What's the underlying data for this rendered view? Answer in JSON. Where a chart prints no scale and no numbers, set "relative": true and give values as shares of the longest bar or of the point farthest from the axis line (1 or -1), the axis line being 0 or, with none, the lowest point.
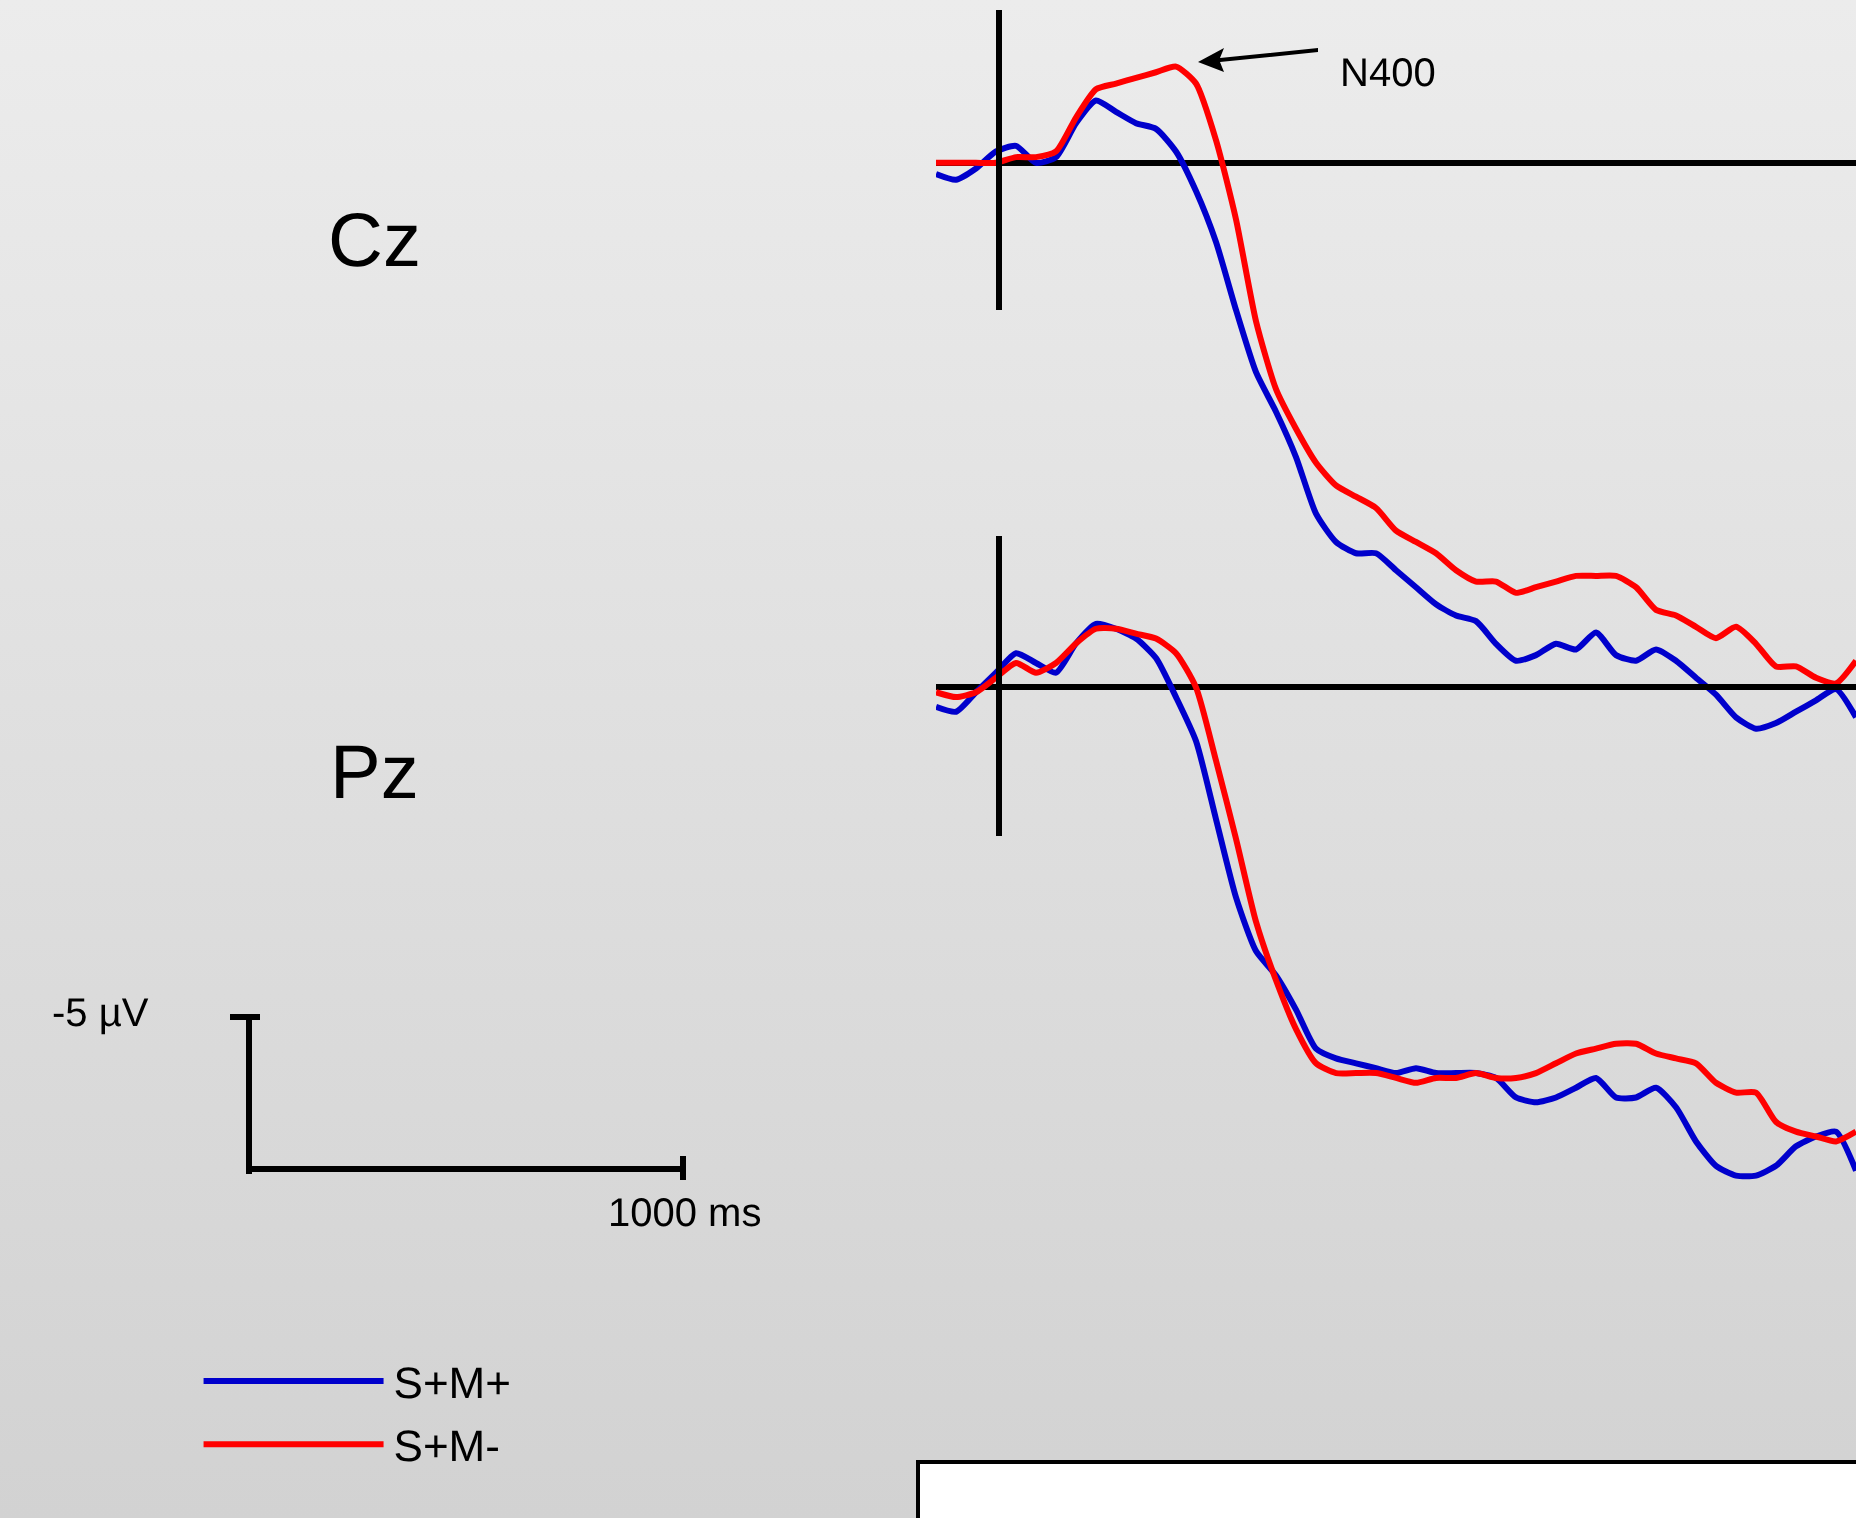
{
  "chart_data": [
    {
      "type": "line",
      "relative": true,
      "grid": false,
      "marker": "none",
      "line_style": "solid",
      "annotations": [
        "Cz",
        "N400"
      ],
      "categories": [
        null,
        null,
        null,
        null,
        null,
        null,
        null,
        null,
        null,
        null,
        null,
        null,
        null,
        null,
        null,
        null,
        null,
        null,
        null,
        null,
        null,
        null,
        null,
        null,
        null,
        null,
        null,
        null,
        null,
        null,
        null,
        null,
        null,
        null,
        null,
        null,
        null,
        null,
        null,
        null,
        null,
        null,
        null,
        null,
        null,
        null,
        null
      ],
      "series": [
        {
          "color": "#0000cc",
          "values": [
            -0.02,
            -0.03,
            -0.01,
            0.02,
            0.03,
            0.0,
            0.01,
            0.07,
            0.11,
            0.09,
            0.07,
            0.06,
            0.02,
            -0.05,
            -0.14,
            -0.26,
            -0.37,
            -0.44,
            -0.52,
            -0.62,
            -0.67,
            -0.69,
            -0.69,
            -0.72,
            -0.75,
            -0.78,
            -0.8,
            -0.81,
            -0.85,
            -0.88,
            -0.87,
            -0.85,
            -0.86,
            -0.83,
            -0.87,
            -0.88,
            -0.86,
            -0.88,
            -0.91,
            -0.94,
            -0.98,
            -1,
            -0.99,
            -0.97,
            -0.95,
            -0.93,
            -0.98
          ]
        },
        {
          "color": "#ff0000",
          "values": [
            0.0,
            0.0,
            0.0,
            0.0,
            0.01,
            0.01,
            0.02,
            0.08,
            0.13,
            0.14,
            0.15,
            0.16,
            0.17,
            0.14,
            0.04,
            -0.1,
            -0.28,
            -0.4,
            -0.47,
            -0.53,
            -0.57,
            -0.59,
            -0.61,
            -0.65,
            -0.67,
            -0.69,
            -0.72,
            -0.74,
            -0.74,
            -0.76,
            -0.75,
            -0.74,
            -0.73,
            -0.73,
            -0.73,
            -0.75,
            -0.79,
            -0.8,
            -0.82,
            -0.84,
            -0.82,
            -0.85,
            -0.89,
            -0.89,
            -0.91,
            -0.92,
            -0.88
          ]
        }
      ]
    },
    {
      "type": "line",
      "relative": true,
      "grid": false,
      "marker": "none",
      "line_style": "solid",
      "legend": "bottom left",
      "annotations": [
        "Pz",
        "-5 µV",
        "1000 ms"
      ],
      "categories": [
        null,
        null,
        null,
        null,
        null,
        null,
        null,
        null,
        null,
        null,
        null,
        null,
        null,
        null,
        null,
        null,
        null,
        null,
        null,
        null,
        null,
        null,
        null,
        null,
        null,
        null,
        null,
        null,
        null,
        null,
        null,
        null,
        null,
        null,
        null,
        null,
        null,
        null,
        null,
        null,
        null,
        null,
        null,
        null,
        null,
        null,
        null
      ],
      "series": [
        {
          "name": "S+M+",
          "color": "#0000cc",
          "values": [
            -0.04,
            -0.05,
            -0.01,
            0.03,
            0.07,
            0.05,
            0.03,
            0.09,
            0.13,
            0.12,
            0.1,
            0.06,
            -0.02,
            -0.11,
            -0.27,
            -0.43,
            -0.54,
            -0.59,
            -0.66,
            -0.74,
            -0.76,
            -0.77,
            -0.78,
            -0.79,
            -0.78,
            -0.79,
            -0.79,
            -0.79,
            -0.8,
            -0.84,
            -0.85,
            -0.84,
            -0.82,
            -0.8,
            -0.84,
            -0.84,
            -0.82,
            -0.86,
            -0.93,
            -0.98,
            -1,
            -1,
            -0.98,
            -0.94,
            -0.92,
            -0.91,
            -0.99
          ]
        },
        {
          "name": "S+M-",
          "color": "#ff0000",
          "values": [
            -0.01,
            -0.02,
            -0.01,
            0.02,
            0.05,
            0.03,
            0.05,
            0.09,
            0.12,
            0.12,
            0.11,
            0.1,
            0.07,
            0.0,
            -0.15,
            -0.31,
            -0.48,
            -0.6,
            -0.7,
            -0.77,
            -0.79,
            -0.79,
            -0.79,
            -0.8,
            -0.81,
            -0.8,
            -0.8,
            -0.79,
            -0.8,
            -0.8,
            -0.79,
            -0.77,
            -0.75,
            -0.74,
            -0.73,
            -0.73,
            -0.75,
            -0.76,
            -0.77,
            -0.81,
            -0.83,
            -0.83,
            -0.89,
            -0.91,
            -0.92,
            -0.93,
            -0.91
          ]
        }
      ]
    }
  ]
}
